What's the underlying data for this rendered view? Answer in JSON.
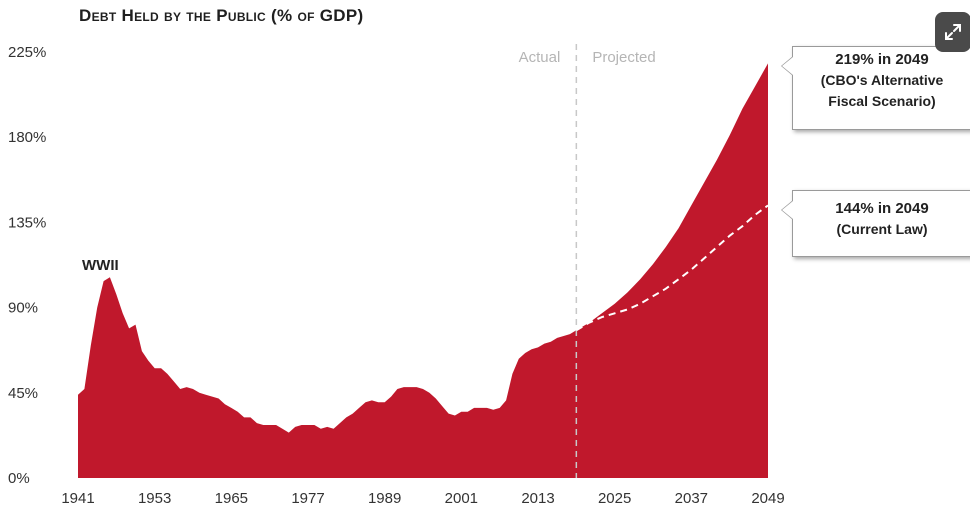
{
  "chart_data": {
    "type": "area",
    "title": "Debt Held by the Public (% of GDP)",
    "y_ticks": [
      "0%",
      "45%",
      "90%",
      "135%",
      "180%",
      "225%"
    ],
    "y_tick_values": [
      0,
      45,
      90,
      135,
      180,
      225
    ],
    "x_ticks": [
      "1941",
      "1953",
      "1965",
      "1977",
      "1989",
      "2001",
      "2013",
      "2025",
      "2037",
      "2049"
    ],
    "x_tick_values": [
      1941,
      1953,
      1965,
      1977,
      1989,
      2001,
      2013,
      2025,
      2037,
      2049
    ],
    "xlim": [
      1941,
      2049
    ],
    "ylim": [
      0,
      225
    ],
    "divider_year": 2019,
    "region_labels": {
      "actual": "Actual",
      "projected": "Projected"
    },
    "annotation_wwii": "WWII",
    "colors": {
      "area": "#c0182c",
      "divider": "#c8c8c8",
      "dashed_line": "#ffffff",
      "title": "#1f1f1f"
    },
    "series": [
      {
        "name": "CBO's Alternative Fiscal Scenario",
        "x": [
          1941,
          1942,
          1943,
          1944,
          1945,
          1946,
          1947,
          1948,
          1949,
          1950,
          1951,
          1952,
          1953,
          1954,
          1955,
          1956,
          1957,
          1958,
          1959,
          1960,
          1961,
          1962,
          1963,
          1964,
          1965,
          1966,
          1967,
          1968,
          1969,
          1970,
          1971,
          1972,
          1973,
          1974,
          1975,
          1976,
          1977,
          1978,
          1979,
          1980,
          1981,
          1982,
          1983,
          1984,
          1985,
          1986,
          1987,
          1988,
          1989,
          1990,
          1991,
          1992,
          1993,
          1994,
          1995,
          1996,
          1997,
          1998,
          1999,
          2000,
          2001,
          2002,
          2003,
          2004,
          2005,
          2006,
          2007,
          2008,
          2009,
          2010,
          2011,
          2012,
          2013,
          2014,
          2015,
          2016,
          2017,
          2018,
          2019,
          2021,
          2023,
          2025,
          2027,
          2029,
          2031,
          2033,
          2035,
          2037,
          2039,
          2041,
          2043,
          2045,
          2047,
          2049
        ],
        "values": [
          44,
          47,
          70,
          90,
          104,
          106,
          97,
          87,
          79,
          81,
          67,
          62,
          58,
          58,
          55,
          51,
          47,
          48,
          47,
          45,
          44,
          43,
          42,
          39,
          37,
          35,
          32,
          32,
          29,
          28,
          28,
          28,
          26,
          24,
          27,
          28,
          28,
          28,
          26,
          27,
          26,
          29,
          32,
          34,
          37,
          40,
          41,
          40,
          40,
          43,
          47,
          48,
          48,
          48,
          47,
          45,
          42,
          38,
          34,
          33,
          35,
          35,
          37,
          37,
          37,
          36,
          37,
          41,
          55,
          63,
          66,
          68,
          69,
          71,
          72,
          74,
          75,
          76,
          78,
          82,
          87,
          92,
          98,
          105,
          113,
          122,
          132,
          144,
          156,
          168,
          181,
          195,
          207,
          219
        ]
      },
      {
        "name": "Current Law",
        "x": [
          2019,
          2021,
          2023,
          2025,
          2027,
          2029,
          2031,
          2033,
          2035,
          2037,
          2039,
          2041,
          2043,
          2045,
          2047,
          2049
        ],
        "values": [
          78,
          82,
          85,
          87,
          89,
          92,
          96,
          100,
          105,
          110,
          116,
          122,
          128,
          133,
          139,
          144
        ]
      }
    ]
  },
  "callouts": {
    "alt": {
      "line1": "219% in 2049",
      "line2": "(CBO's Alternative",
      "line3": "Fiscal Scenario)"
    },
    "current": {
      "line1": "144% in 2049",
      "line2": "(Current Law)"
    }
  },
  "ui": {
    "expand_icon": "expand-icon"
  }
}
